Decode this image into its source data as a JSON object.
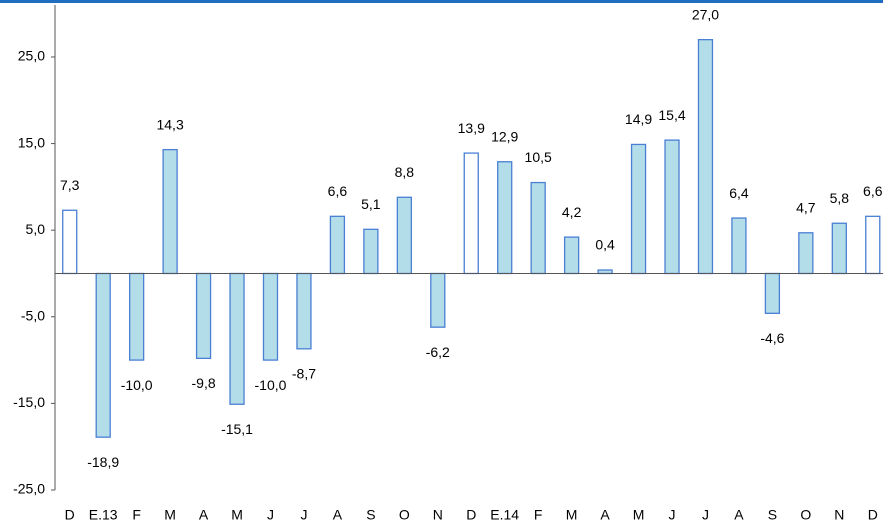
{
  "chart_data": {
    "type": "bar",
    "categories": [
      "D",
      "E.13",
      "F",
      "M",
      "A",
      "M",
      "J",
      "J",
      "A",
      "S",
      "O",
      "N",
      "D",
      "E.14",
      "F",
      "M",
      "A",
      "M",
      "J",
      "J",
      "A",
      "S",
      "O",
      "N",
      "D"
    ],
    "values": [
      7.3,
      -18.9,
      -10.0,
      14.3,
      -9.8,
      -15.1,
      -10.0,
      -8.7,
      6.6,
      5.1,
      8.8,
      -6.2,
      13.9,
      12.9,
      10.5,
      4.2,
      0.4,
      14.9,
      15.4,
      27.0,
      6.4,
      -4.6,
      4.7,
      5.8,
      6.6
    ],
    "value_labels": [
      "7,3",
      "-18,9",
      "-10,0",
      "14,3",
      "-9,8",
      "-15,1",
      "-10,0",
      "-8,7",
      "6,6",
      "5,1",
      "8,8",
      "-6,2",
      "13,9",
      "12,9",
      "10,5",
      "4,2",
      "0,4",
      "14,9",
      "15,4",
      "27,0",
      "6,4",
      "-4,6",
      "4,7",
      "5,8",
      "6,6"
    ],
    "colors": [
      "#ffffff",
      "#b3dde9",
      "#b3dde9",
      "#b3dde9",
      "#b3dde9",
      "#b3dde9",
      "#b3dde9",
      "#b3dde9",
      "#b3dde9",
      "#b3dde9",
      "#b3dde9",
      "#b3dde9",
      "#ffffff",
      "#b3dde9",
      "#b3dde9",
      "#b3dde9",
      "#b3dde9",
      "#b3dde9",
      "#b3dde9",
      "#b3dde9",
      "#b3dde9",
      "#b3dde9",
      "#b3dde9",
      "#b3dde9",
      "#ffffff"
    ],
    "edge_color": "#4a7fd4",
    "ylim": [
      -25,
      31
    ],
    "yticks": [
      {
        "value": -25,
        "label": "-25,0"
      },
      {
        "value": -15,
        "label": "-15,0"
      },
      {
        "value": -5,
        "label": "-5,0"
      },
      {
        "value": 5,
        "label": "5,0"
      },
      {
        "value": 15,
        "label": "15,0"
      },
      {
        "value": 25,
        "label": "25,0"
      }
    ],
    "grid": false
  }
}
